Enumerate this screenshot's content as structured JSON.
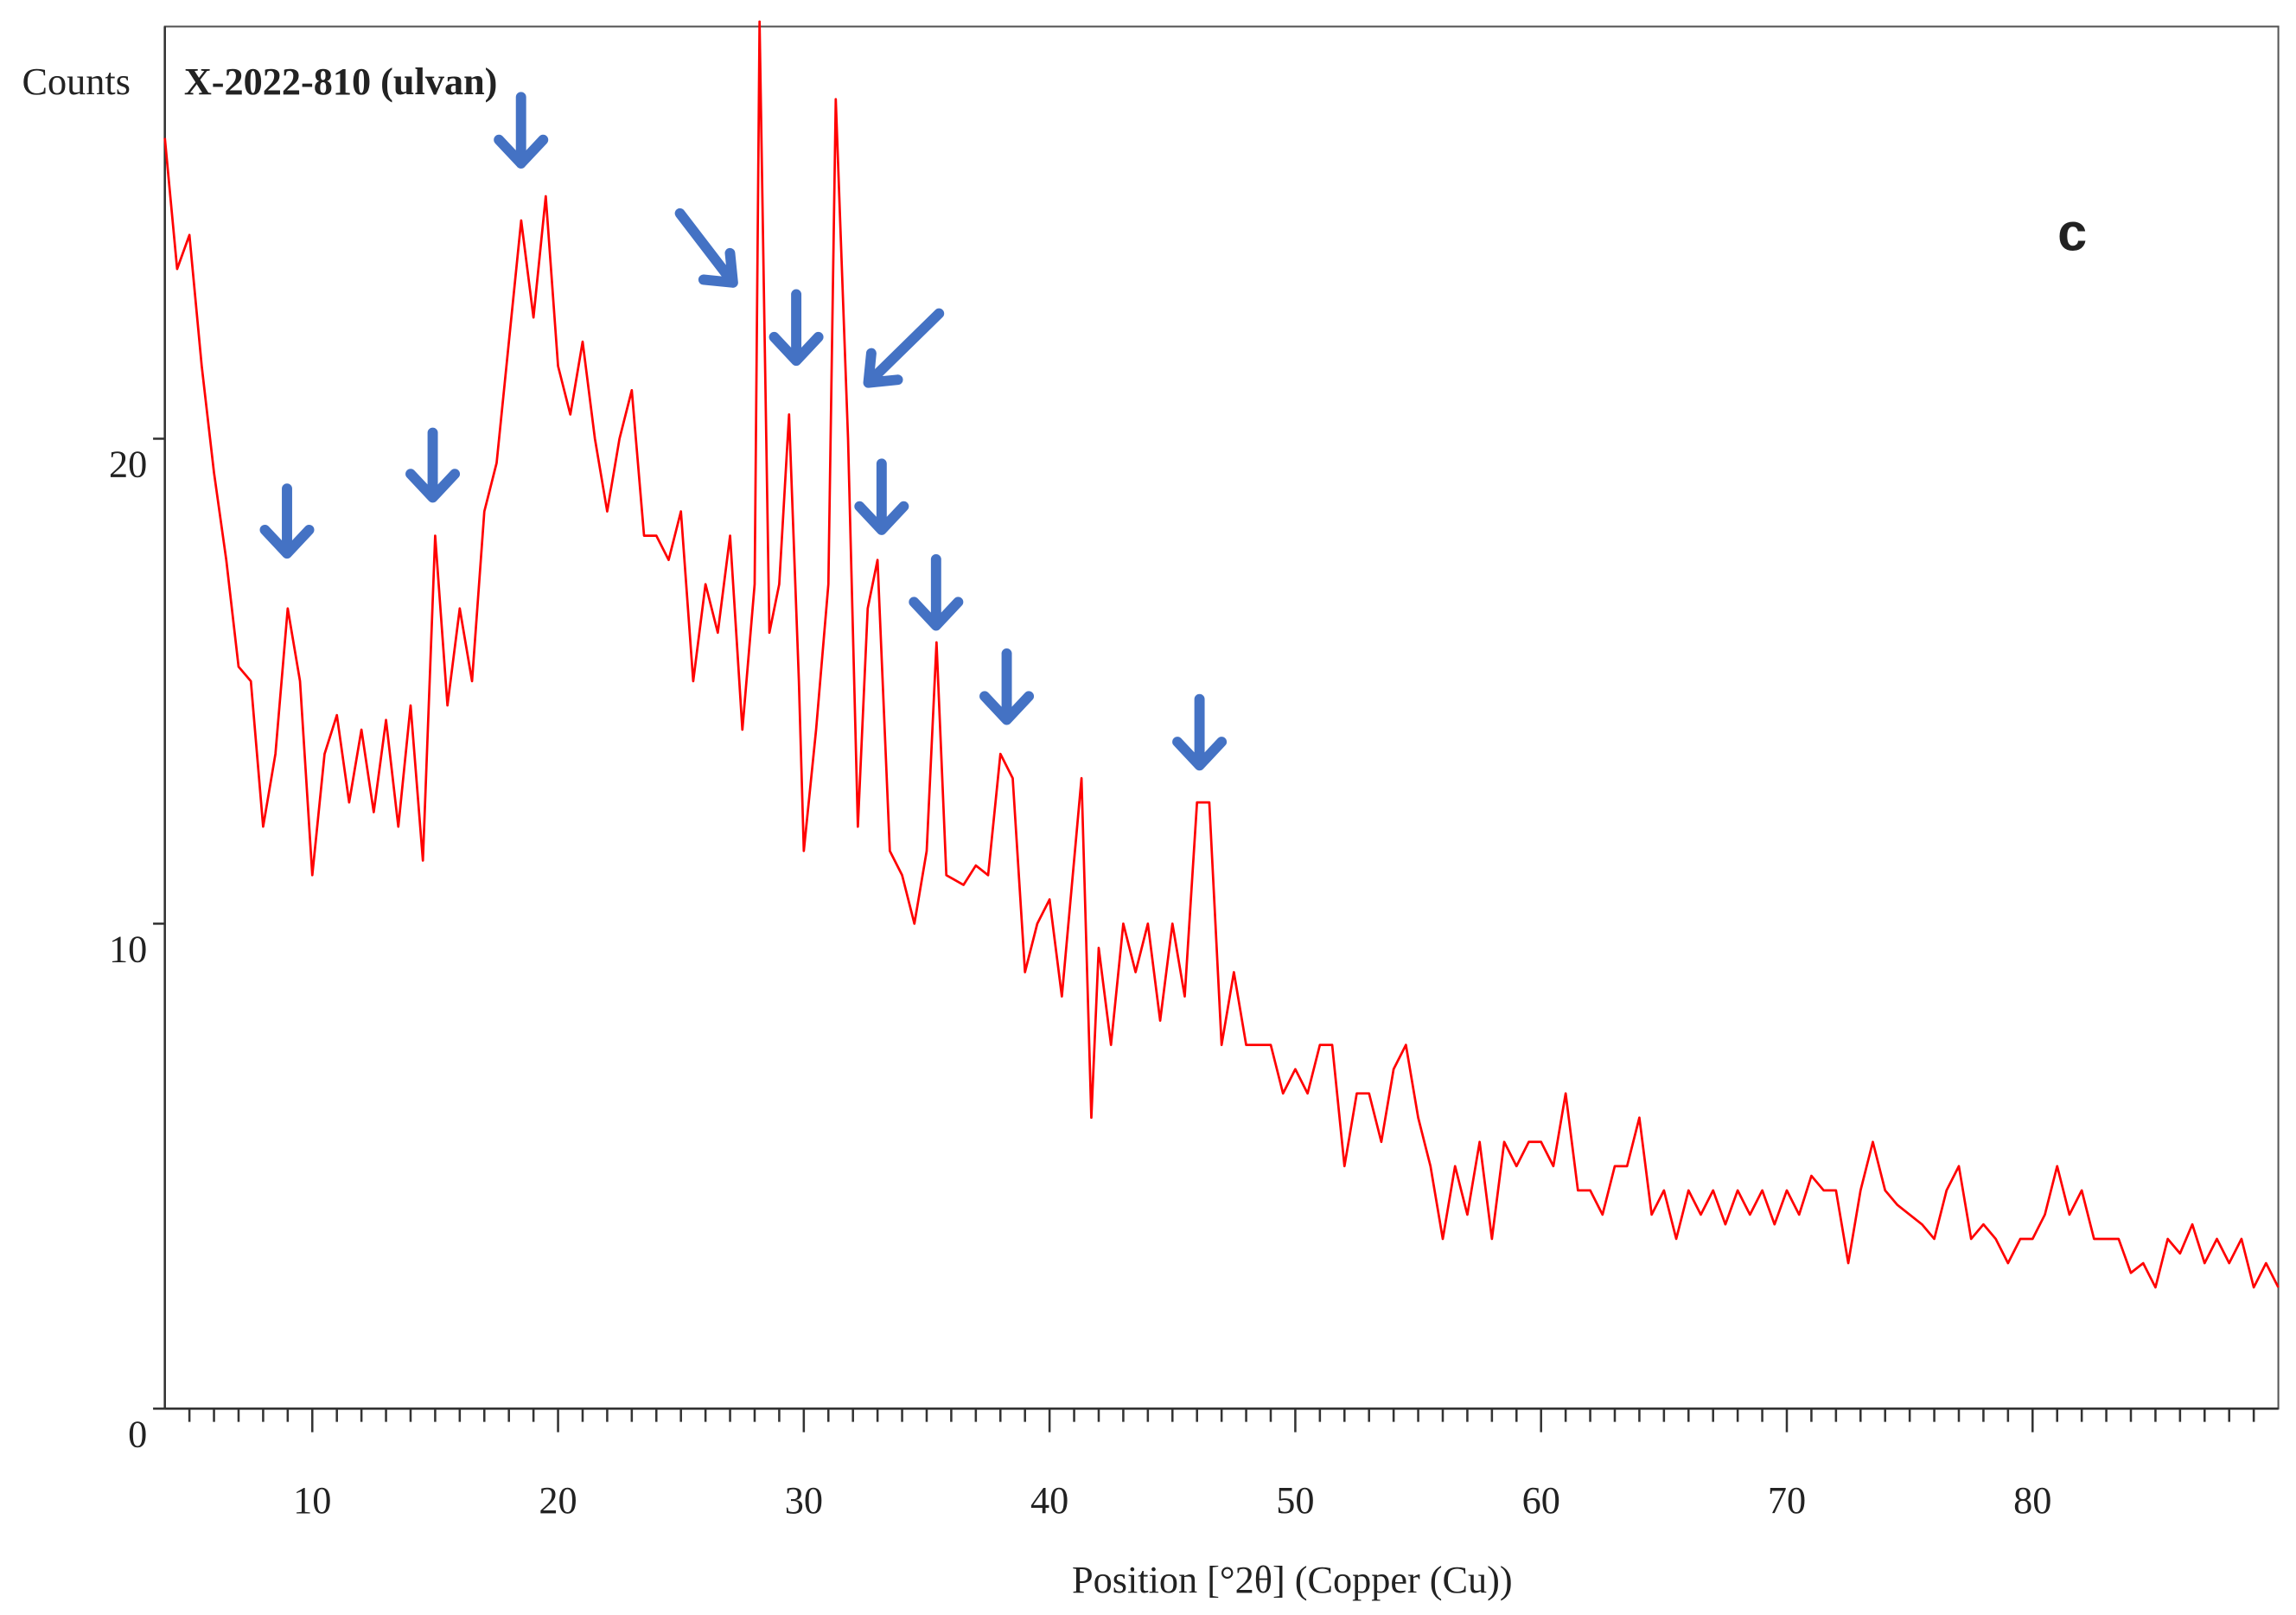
{
  "chart_data": {
    "type": "line",
    "title": "X-2022-810 (ulvan)",
    "y_label": "Counts",
    "x_label": "Position [°2θ] (Copper (Cu))",
    "annotation": "c",
    "color": "#ff0000",
    "xlim": [
      4,
      90
    ],
    "ylim": [
      0,
      28.5
    ],
    "xticks": [
      10,
      20,
      30,
      40,
      50,
      60,
      70,
      80
    ],
    "xminorticks": [
      5,
      6,
      7,
      8,
      9,
      11,
      12,
      13,
      14,
      15,
      16,
      17,
      18,
      19,
      21,
      22,
      23,
      24,
      25,
      26,
      27,
      28,
      29,
      31,
      32,
      33,
      34,
      35,
      36,
      37,
      38,
      39,
      41,
      42,
      43,
      44,
      45,
      46,
      47,
      48,
      49,
      51,
      52,
      53,
      54,
      55,
      56,
      57,
      58,
      59,
      61,
      62,
      63,
      64,
      65,
      66,
      67,
      68,
      69,
      71,
      72,
      73,
      74,
      75,
      76,
      77,
      78,
      79,
      81,
      82,
      83,
      84,
      85,
      86,
      87,
      88,
      89
    ],
    "yticks": [
      0,
      10,
      20
    ],
    "x": [
      4,
      4.5,
      5,
      5.5,
      6,
      6.5,
      7,
      7.5,
      8,
      8.5,
      9,
      9.5,
      10,
      10.5,
      11,
      11.5,
      12,
      12.5,
      13,
      13.5,
      14,
      14.5,
      15,
      15.5,
      16,
      16.5,
      17,
      17.5,
      18,
      18.5,
      19,
      19.5,
      20,
      20.5,
      21,
      21.5,
      22,
      22.5,
      23,
      23.5,
      24,
      24.5,
      25,
      25.5,
      26,
      26.5,
      27,
      27.5,
      28,
      28.2,
      28.6,
      29,
      29.4,
      29.8,
      30,
      30.5,
      31,
      31.3,
      31.8,
      32.2,
      32.6,
      33,
      33.5,
      34,
      34.5,
      35,
      35.4,
      35.8,
      36.5,
      37,
      37.5,
      38,
      38.5,
      39,
      39.5,
      40,
      40.5,
      41.3,
      41.7,
      42,
      42.5,
      43,
      43.5,
      44,
      44.5,
      45,
      45.5,
      46,
      46.5,
      47,
      47.5,
      48,
      48.5,
      49,
      49.5,
      50,
      50.5,
      51,
      51.5,
      52,
      52.5,
      53,
      53.5,
      54,
      54.5,
      55,
      55.5,
      56,
      56.5,
      57,
      57.5,
      58,
      58.5,
      59,
      59.5,
      60,
      60.5,
      61,
      61.5,
      62,
      62.5,
      63,
      63.5,
      64,
      64.5,
      65,
      65.5,
      66,
      66.5,
      67,
      67.5,
      68,
      68.5,
      69,
      69.5,
      70,
      70.5,
      71,
      71.5,
      72,
      72.5,
      73,
      73.5,
      74,
      74.5,
      75,
      75.5,
      76,
      76.5,
      77,
      77.5,
      78,
      78.5,
      79,
      79.5,
      80,
      80.5,
      81,
      81.5,
      82,
      82.5,
      83,
      83.5,
      84,
      84.5,
      85,
      85.5,
      86,
      86.5,
      87,
      87.5,
      88,
      88.5,
      89,
      89.5,
      90
    ],
    "values": [
      26.2,
      23.5,
      24.2,
      21.5,
      19.3,
      17.5,
      15.3,
      15.0,
      12.0,
      13.5,
      16.5,
      15.0,
      11.0,
      13.5,
      14.3,
      12.5,
      14.0,
      12.3,
      14.2,
      12.0,
      14.5,
      11.3,
      18.0,
      14.5,
      16.5,
      15.0,
      18.5,
      19.5,
      22.0,
      24.5,
      22.5,
      25.0,
      21.5,
      20.5,
      22.0,
      20.0,
      18.5,
      20.0,
      21.0,
      18.0,
      18.0,
      17.5,
      18.5,
      15.0,
      17.0,
      16.0,
      18.0,
      14.0,
      17.0,
      28.6,
      16.0,
      17.0,
      20.5,
      15.0,
      11.5,
      14.0,
      17.0,
      27.0,
      20.0,
      12.0,
      16.5,
      17.5,
      11.5,
      11.0,
      10.0,
      11.5,
      15.8,
      11.0,
      10.8,
      11.2,
      11.0,
      13.5,
      13.0,
      9.0,
      10.0,
      10.5,
      8.5,
      13.0,
      6.0,
      9.5,
      7.5,
      10.0,
      9.0,
      10.0,
      8.0,
      10.0,
      8.5,
      12.5,
      12.5,
      7.5,
      9.0,
      7.5,
      7.5,
      7.5,
      6.5,
      7.0,
      6.5,
      7.5,
      7.5,
      5.0,
      6.5,
      6.5,
      5.5,
      7.0,
      7.5,
      6.0,
      5.0,
      3.5,
      5.0,
      4.0,
      5.5,
      3.5,
      5.5,
      5.0,
      5.5,
      5.5,
      5.0,
      6.5,
      4.5,
      4.5,
      4.0,
      5.0,
      5.0,
      6.0,
      4.0,
      4.5,
      3.5,
      4.5,
      4.0,
      4.5,
      3.8,
      4.5,
      4.0,
      4.5,
      3.8,
      4.5,
      4.0,
      4.8,
      4.5,
      4.5,
      3.0,
      4.5,
      5.5,
      4.5,
      4.2,
      4.0,
      3.8,
      3.5,
      4.5,
      5.0,
      3.5,
      3.8,
      3.5,
      3.0,
      3.5,
      3.5,
      4.0,
      5.0,
      4.0,
      4.5,
      3.5,
      3.5,
      3.5,
      2.8,
      3.0,
      2.5,
      3.5,
      3.2,
      3.8,
      3.0,
      3.5,
      3.0,
      3.5,
      2.5,
      3.0,
      2.5
    ]
  }
}
